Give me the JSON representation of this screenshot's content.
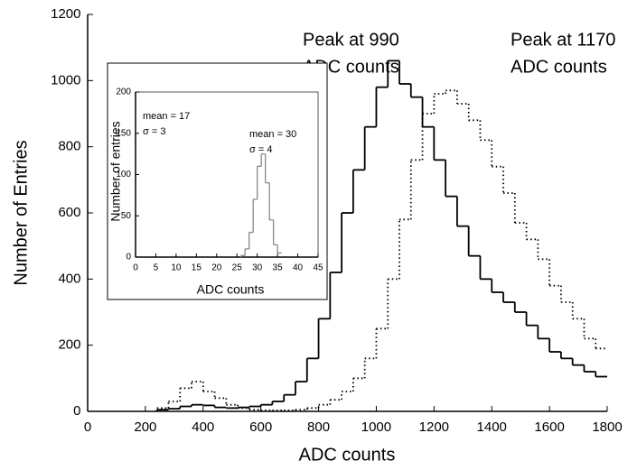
{
  "chart_data": [
    {
      "type": "histogram",
      "xlabel": "ADC counts",
      "ylabel": "Number of Entries",
      "xlim": [
        0,
        1800
      ],
      "xticks": [
        0,
        200,
        400,
        600,
        800,
        1000,
        1200,
        1400,
        1600,
        1800
      ],
      "ylim": [
        0,
        1200
      ],
      "yticks": [
        0,
        200,
        400,
        600,
        800,
        1000,
        1200
      ],
      "bins": [
        240,
        280,
        320,
        360,
        400,
        440,
        480,
        520,
        560,
        600,
        640,
        680,
        720,
        760,
        800,
        840,
        880,
        920,
        960,
        1000,
        1040,
        1080,
        1120,
        1160,
        1200,
        1240,
        1280,
        1320,
        1360,
        1400,
        1440,
        1480,
        1520,
        1560,
        1600,
        1640,
        1680,
        1720,
        1760,
        1800
      ],
      "series": [
        {
          "color": "#000000",
          "dash": "solid",
          "values": [
            5,
            8,
            15,
            20,
            18,
            12,
            10,
            12,
            15,
            20,
            30,
            50,
            90,
            160,
            280,
            420,
            600,
            730,
            860,
            980,
            1060,
            990,
            950,
            860,
            760,
            650,
            560,
            470,
            400,
            360,
            330,
            300,
            260,
            220,
            180,
            160,
            140,
            120,
            105
          ]
        },
        {
          "color": "#000000",
          "dash": "dotted",
          "values": [
            10,
            30,
            70,
            90,
            60,
            40,
            20,
            10,
            5,
            3,
            3,
            3,
            5,
            10,
            20,
            35,
            60,
            100,
            160,
            250,
            400,
            580,
            760,
            900,
            960,
            970,
            930,
            880,
            820,
            740,
            660,
            570,
            520,
            460,
            380,
            330,
            280,
            220,
            190
          ]
        }
      ],
      "annotations": [
        [
          "Peak at 990",
          "ADC counts"
        ],
        [
          "Peak at 1170",
          "ADC counts"
        ]
      ]
    },
    {
      "type": "histogram",
      "xlabel": "ADC counts",
      "ylabel": "Number of entries",
      "xlim": [
        0,
        45
      ],
      "xticks": [
        0,
        5,
        10,
        15,
        20,
        25,
        30,
        35,
        40,
        45
      ],
      "ylim": [
        0,
        200
      ],
      "yticks": [
        0,
        50,
        100,
        150,
        200
      ],
      "bins": [
        26,
        27,
        28,
        29,
        30,
        31,
        32,
        33,
        34,
        35,
        36
      ],
      "series": [
        {
          "color": "#888888",
          "dash": "solid",
          "values": [
            2,
            10,
            30,
            70,
            110,
            125,
            90,
            45,
            15,
            5
          ]
        }
      ],
      "annotations": [
        [
          "mean = 17",
          "σ = 3"
        ],
        [
          "mean = 30",
          "σ = 4"
        ]
      ]
    }
  ]
}
